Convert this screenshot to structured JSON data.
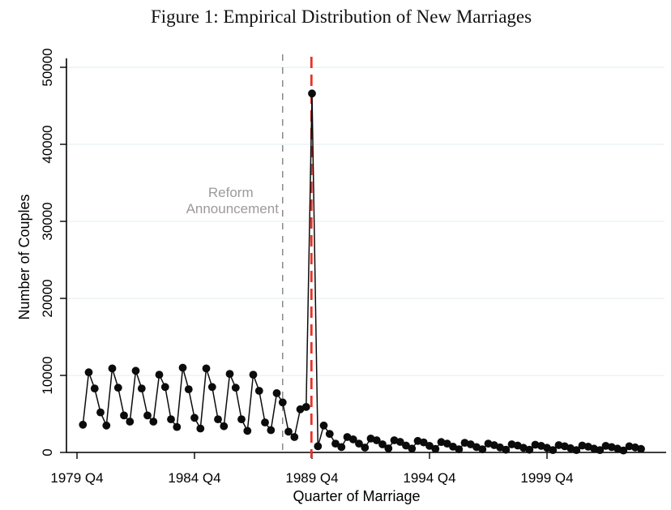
{
  "figure": {
    "number_label": "Figure 1",
    "caption": "Figure 1: Empirical Distribution of New Marriages"
  },
  "chart_data": {
    "type": "line",
    "title": "Figure 1: Empirical Distribution of New Marriages",
    "xlabel": "Quarter of Marriage",
    "ylabel": "Number of Couples",
    "ylim": [
      0,
      50000
    ],
    "ytick_values": [
      0,
      10000,
      20000,
      30000,
      40000,
      50000
    ],
    "ytick_labels": [
      "0",
      "10000",
      "20000",
      "30000",
      "40000",
      "50000"
    ],
    "xticks": [
      {
        "label": "1979 Q4",
        "quarter": 0
      },
      {
        "label": "1984 Q4",
        "quarter": 20
      },
      {
        "label": "1989 Q4",
        "quarter": 40
      },
      {
        "label": "1994 Q4",
        "quarter": 60
      },
      {
        "label": "1999 Q4",
        "quarter": 80
      }
    ],
    "grid": true,
    "legend": "none",
    "marker": "filled-circle",
    "series": [
      {
        "name": "new-marriages-per-quarter",
        "start": "1980 Q1",
        "frequency": "quarterly",
        "start_quarter_index": 1,
        "values": [
          3600,
          10400,
          8300,
          5200,
          3500,
          10900,
          8400,
          4800,
          4000,
          10600,
          8300,
          4800,
          4000,
          10100,
          8500,
          4300,
          3300,
          11000,
          8200,
          4500,
          3100,
          10900,
          8500,
          4300,
          3400,
          10200,
          8400,
          4300,
          2800,
          10100,
          8000,
          3900,
          2900,
          7700,
          6500,
          2700,
          2000,
          5600,
          5900,
          46600,
          800,
          3500,
          2400,
          1150,
          700,
          2000,
          1700,
          1150,
          630,
          1800,
          1580,
          1050,
          530,
          1580,
          1370,
          900,
          500,
          1500,
          1300,
          850,
          450,
          1350,
          1150,
          750,
          400,
          1250,
          1050,
          700,
          400,
          1150,
          950,
          650,
          350,
          1050,
          900,
          600,
          350,
          1000,
          850,
          600,
          300,
          950,
          800,
          550,
          300,
          900,
          750,
          500,
          300,
          850,
          700,
          500,
          250,
          800,
          650,
          450
        ]
      }
    ],
    "annotations": [
      {
        "id": "reform-announcement",
        "type": "vline",
        "x_quarter": 35,
        "x_label": "1988 Q3",
        "style": "dashed",
        "color": "#8a8a8a",
        "label": [
          "Reform",
          "Announcement"
        ],
        "label_color": "#9b9b9b"
      },
      {
        "id": "reform-date",
        "type": "vline",
        "x_quarter": 39.9,
        "x_label": "1989 Q4",
        "style": "dashed",
        "color": "#e8312a",
        "label": []
      }
    ],
    "colors": {
      "series": "#0b0b0b",
      "gridline": "#e7eff3",
      "axis": "#000000",
      "announcement_line": "#8a8a8a",
      "reform_line": "#e8312a",
      "background": "#ffffff"
    }
  }
}
